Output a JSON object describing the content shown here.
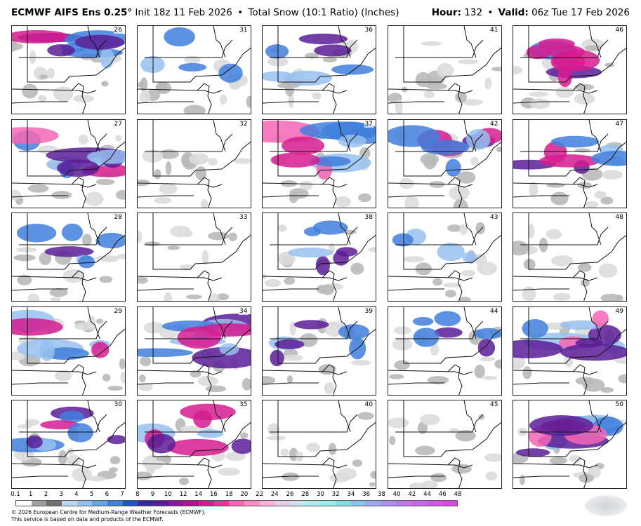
{
  "header": {
    "model": "ECMWF AIFS Ens 0.25°",
    "init": "Init 18z 11 Feb 2026",
    "product": "Total Snow (10:1 Ratio) (Inches)",
    "hour_label": "Hour:",
    "hour": "132",
    "valid_label": "Valid:",
    "valid": "06z Tue 17 Feb 2026"
  },
  "members": [
    [
      "26",
      "31",
      "36",
      "41",
      "46"
    ],
    [
      "27",
      "32",
      "37",
      "42",
      "47"
    ],
    [
      "28",
      "33",
      "38",
      "43",
      "48"
    ],
    [
      "29",
      "34",
      "39",
      "44",
      "49"
    ],
    [
      "30",
      "35",
      "40",
      "45",
      "50"
    ]
  ],
  "panel_intensity": [
    [
      3,
      1,
      2,
      0,
      3
    ],
    [
      4,
      0,
      4,
      3,
      3
    ],
    [
      2,
      0,
      2,
      1,
      0
    ],
    [
      3,
      4,
      2,
      2,
      4
    ],
    [
      3,
      3,
      0,
      0,
      4
    ]
  ],
  "colorbar": {
    "ticks": [
      "0.1",
      "1",
      "2",
      "3",
      "4",
      "5",
      "6",
      "7",
      "8",
      "9",
      "10",
      "12",
      "14",
      "16",
      "18",
      "20",
      "22",
      "24",
      "26",
      "28",
      "30",
      "32",
      "34",
      "36",
      "38",
      "40",
      "42",
      "44",
      "46",
      "48"
    ],
    "colors": [
      "#ffffff",
      "#9e9e9e",
      "#6f6f6f",
      "#bcd7f4",
      "#96c1ee",
      "#6aa2e6",
      "#3f7fdc",
      "#2152c7",
      "#3a2aa0",
      "#5b1d96",
      "#8a1a9a",
      "#b0138f",
      "#d61b8f",
      "#ee2f9c",
      "#f566b4",
      "#f58fc6",
      "#f7b1d6",
      "#e7c8e6",
      "#cfe0ef",
      "#b2e9ee",
      "#99ecec",
      "#86dfe6",
      "#8ec3ea",
      "#9ea9ec",
      "#ad90ea",
      "#bb7be8",
      "#c668e6",
      "#cf58e4",
      "#d84ae2"
    ]
  },
  "footer": {
    "line1": "© 2026 European Centre for Medium-Range Weather Forecasts (ECMWF).",
    "line2": "This service is based on data and products of the ECMWF."
  },
  "logo_text": "WeatherBELL"
}
